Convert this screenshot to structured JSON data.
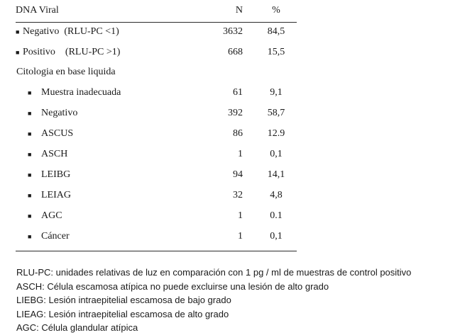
{
  "table": {
    "header": {
      "label": "DNA Viral",
      "n": "N",
      "pct": "%"
    },
    "viral_rows": [
      {
        "label": "Negativo  (RLU-PC <1)",
        "n": "3632",
        "pct": "84,5"
      },
      {
        "label": "Positivo    (RLU-PC >1)",
        "n": "668",
        "pct": "15,5"
      }
    ],
    "section_label": "Citologia en base liquida",
    "cyto_rows": [
      {
        "label": "Muestra inadecuada",
        "n": "61",
        "pct": "9,1"
      },
      {
        "label": "Negativo",
        "n": "392",
        "pct": "58,7"
      },
      {
        "label": "ASCUS",
        "n": "86",
        "pct": "12.9"
      },
      {
        "label": "ASCH",
        "n": "1",
        "pct": "0,1"
      },
      {
        "label": "LEIBG",
        "n": "94",
        "pct": "14,1"
      },
      {
        "label": "LEIAG",
        "n": "32",
        "pct": "4,8"
      },
      {
        "label": "AGC",
        "n": "1",
        "pct": "0.1"
      },
      {
        "label": "Cáncer",
        "n": "1",
        "pct": "0,1"
      }
    ]
  },
  "footnotes": [
    "RLU-PC: unidades relativas de luz en comparación con 1 pg / ml de muestras de control positivo",
    "ASCH: Célula escamosa atípica no puede excluirse una lesión de alto grado",
    "LIEBG: Lesión intraepitelial escamosa de bajo grado",
    "LIEAG: Lesión intraepitelial escamosa de alto grado",
    "AGC: Célula glandular atípica"
  ]
}
